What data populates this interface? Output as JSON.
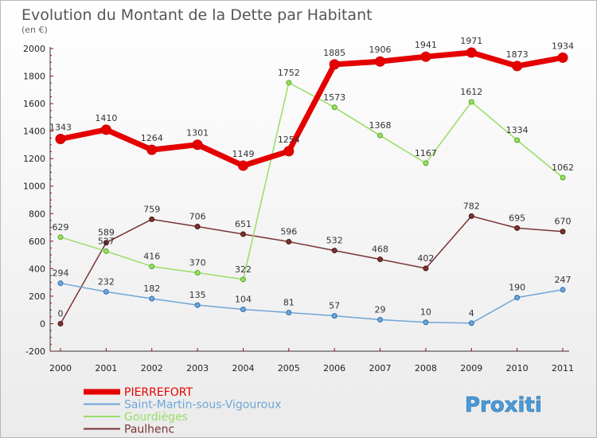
{
  "chart_data": {
    "type": "line",
    "title": "Evolution du Montant de la Dette par Habitant",
    "subtitle": "(en €)",
    "x": [
      "2000",
      "2001",
      "2002",
      "2003",
      "2004",
      "2005",
      "2006",
      "2007",
      "2008",
      "2009",
      "2010",
      "2011"
    ],
    "ylim": [
      -200,
      2000
    ],
    "yticks": [
      -200,
      0,
      200,
      400,
      600,
      800,
      1000,
      1200,
      1400,
      1600,
      1800,
      2000
    ],
    "grid": false,
    "legend_position": "bottom-left",
    "series": [
      {
        "name": "PIERREFORT",
        "color": "#e50000",
        "values": [
          1343,
          1410,
          1264,
          1301,
          1149,
          1254,
          1885,
          1906,
          1941,
          1971,
          1873,
          1934
        ]
      },
      {
        "name": "Saint-Martin-sous-Vigouroux",
        "color": "#6fa6d6",
        "values": [
          294,
          232,
          182,
          135,
          104,
          81,
          57,
          29,
          10,
          4,
          190,
          247
        ]
      },
      {
        "name": "Gourdièges",
        "color": "#99dd66",
        "values": [
          629,
          527,
          416,
          370,
          322,
          1752,
          1573,
          1368,
          1167,
          1612,
          1334,
          1062
        ]
      },
      {
        "name": "Paulhenc",
        "color": "#7a3333",
        "values": [
          0,
          589,
          759,
          706,
          651,
          596,
          532,
          468,
          402,
          782,
          695,
          670
        ]
      }
    ]
  },
  "watermark": {
    "text": "Proxiti"
  }
}
